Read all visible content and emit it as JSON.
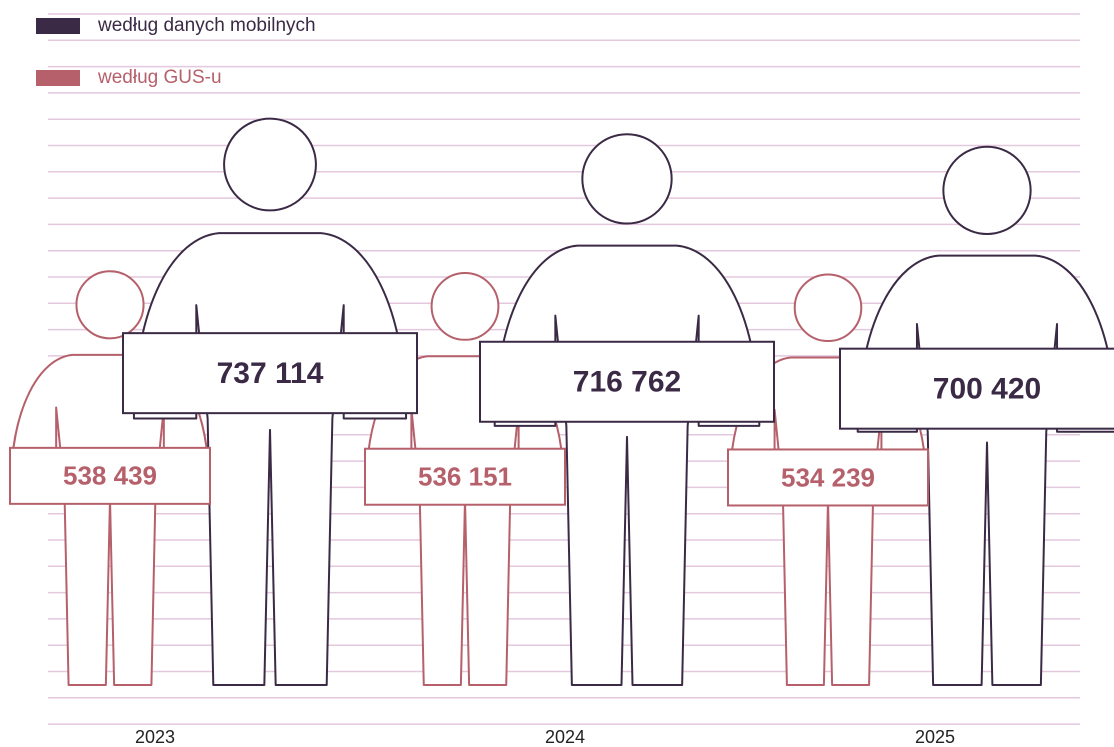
{
  "chart_data": {
    "type": "pictogram",
    "categories": [
      "2023",
      "2024",
      "2025"
    ],
    "series": [
      {
        "name": "według danych mobilnych",
        "color": "#3b2a45",
        "values": [
          737114,
          716762,
          700420
        ],
        "value_labels": [
          "737 114",
          "716 762",
          "700 420"
        ]
      },
      {
        "name": "według GUS-u",
        "color": "#b5606a",
        "values": [
          538439,
          536151,
          534239
        ],
        "value_labels": [
          "538 439",
          "536 151",
          "534 239"
        ]
      }
    ]
  }
}
